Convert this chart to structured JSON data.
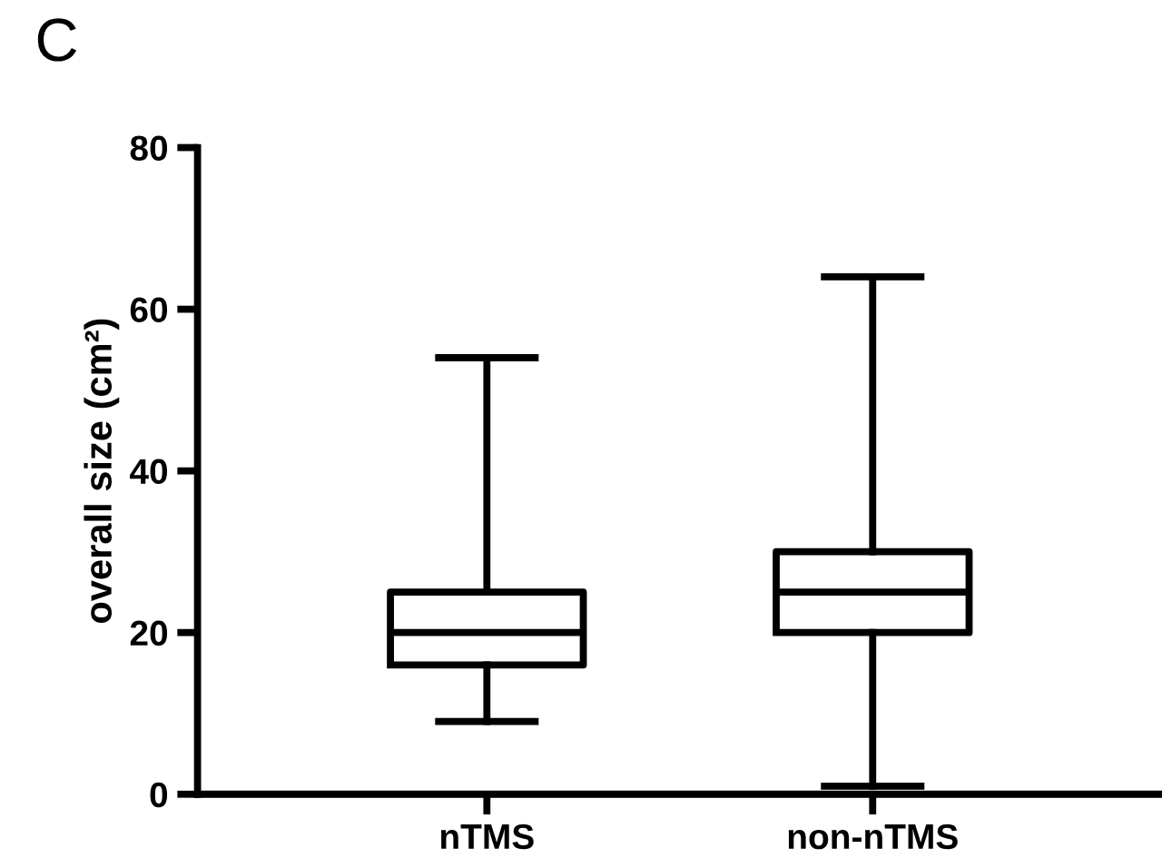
{
  "chart_data": {
    "type": "box",
    "title": "C",
    "ylabel": "overall size (cm²)",
    "categories": [
      "nTMS",
      "non-nTMS"
    ],
    "boxes": [
      {
        "low": 9,
        "q1": 16,
        "median": 20,
        "q3": 25,
        "high": 54
      },
      {
        "low": 1,
        "q1": 20,
        "median": 25,
        "q3": 30,
        "high": 64
      }
    ],
    "color": "#000000",
    "ylim": [
      0,
      80
    ],
    "yticks": [
      0,
      20,
      40,
      60,
      80
    ]
  }
}
